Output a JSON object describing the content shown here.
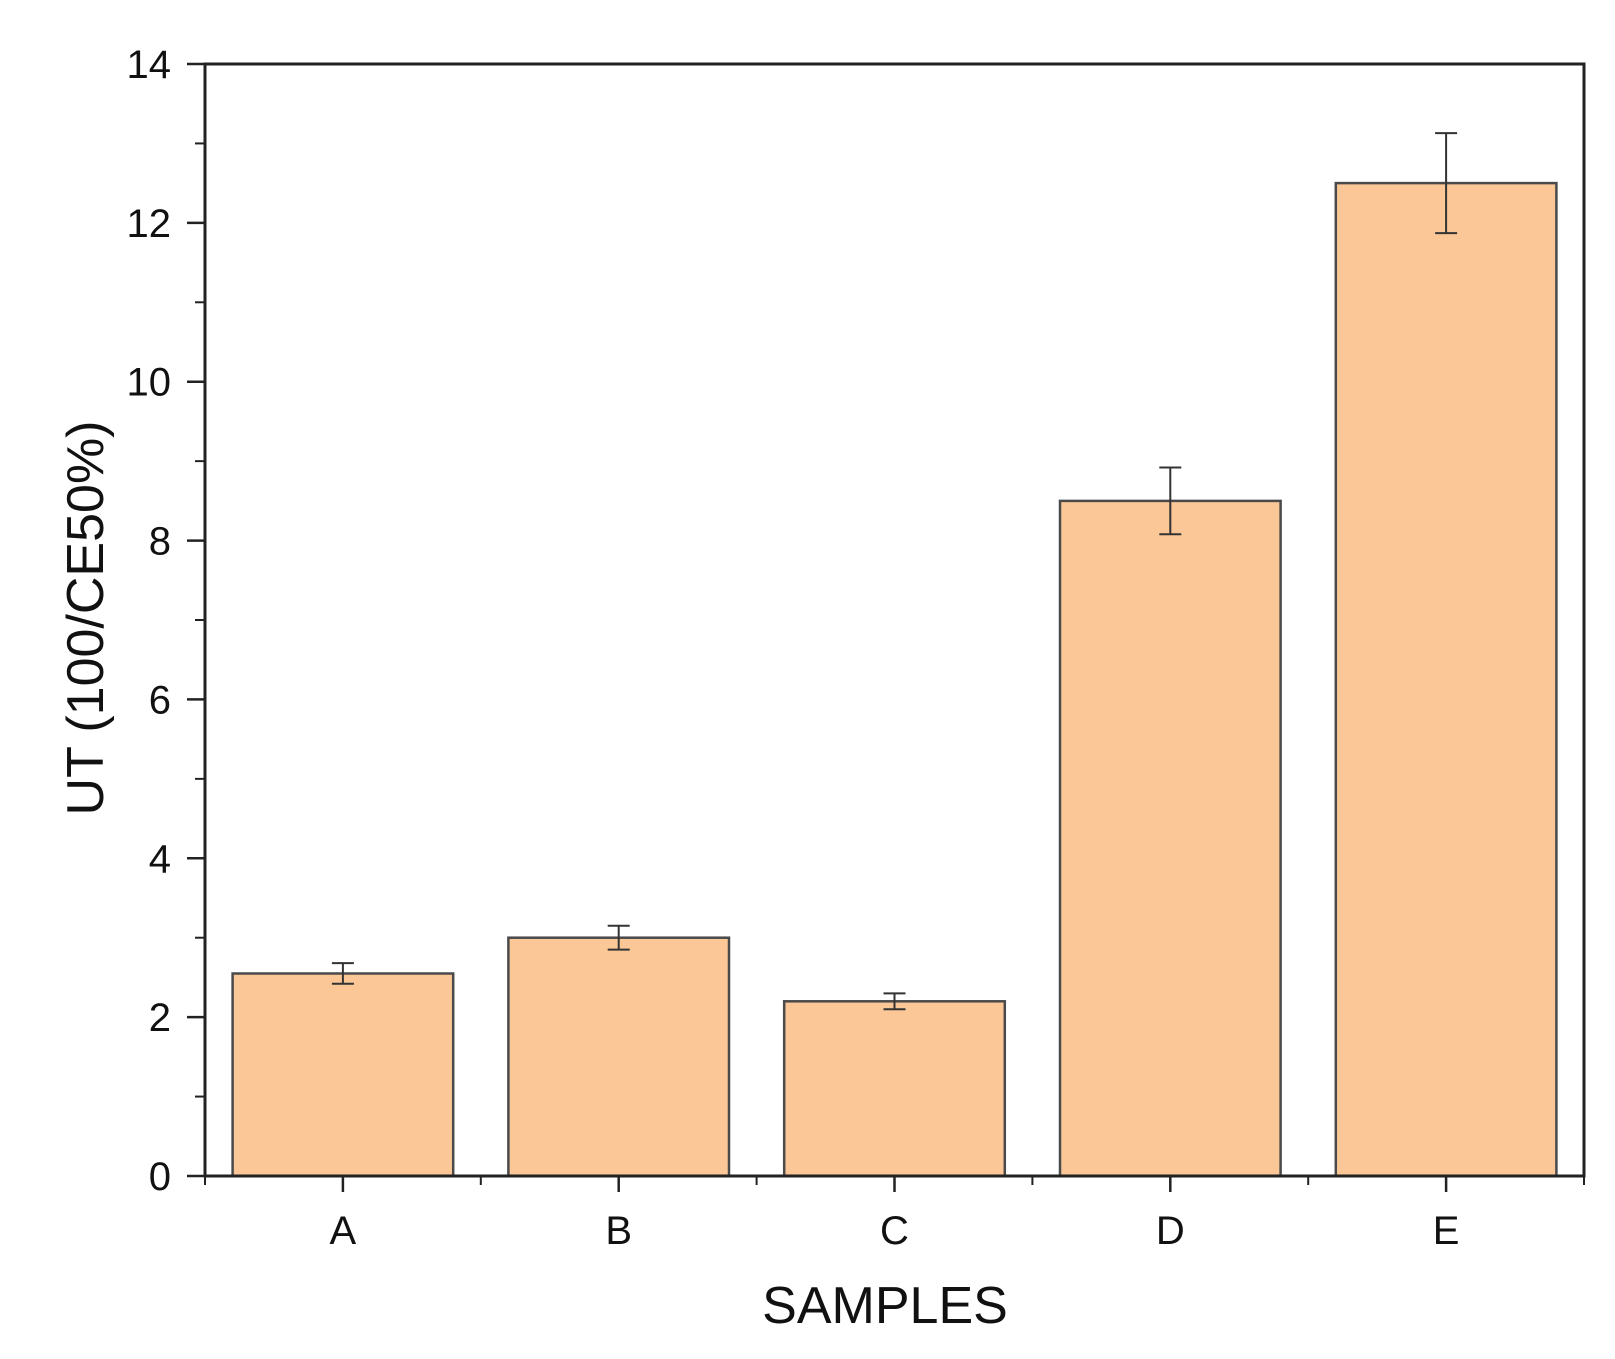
{
  "chart_data": {
    "type": "bar",
    "title": "",
    "xlabel": "SAMPLES",
    "ylabel": "UT (100/CE50%)",
    "categories": [
      "A",
      "B",
      "C",
      "D",
      "E"
    ],
    "values": [
      2.55,
      3.0,
      2.2,
      8.5,
      12.5
    ],
    "errors": [
      0.13,
      0.15,
      0.1,
      0.42,
      0.63
    ],
    "ylim": [
      0,
      14
    ],
    "yticks": [
      0,
      2,
      4,
      6,
      8,
      10,
      12,
      14
    ],
    "grid": false,
    "legend": "none",
    "colors": {
      "bar_fill": "#FBC797",
      "bar_edge": "#4a4a4a",
      "axis": "#222222",
      "error_bar": "#333333"
    }
  }
}
